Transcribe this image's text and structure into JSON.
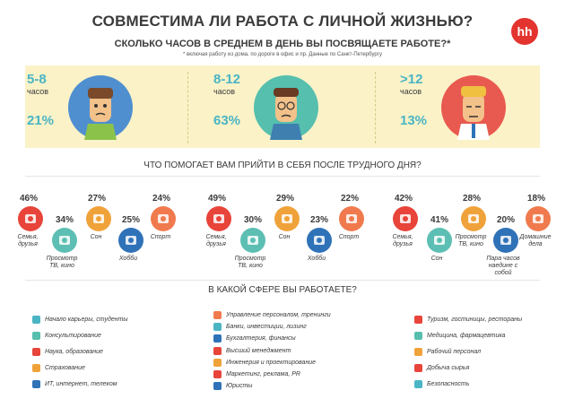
{
  "header": {
    "title": "СОВМЕСТИМА ЛИ РАБОТА С ЛИЧНОЙ ЖИЗНЬЮ?",
    "logo": "hh",
    "question": "СКОЛЬКО ЧАСОВ В СРЕДНЕМ В ДЕНЬ ВЫ ПОСВЯЩАЕТЕ РАБОТЕ?*",
    "footnote": "* включая работу из дома, по дороге в офис и пр. Данные по Санкт-Петербургу"
  },
  "hours": [
    {
      "range": "5-8",
      "unit": "часов",
      "percent": "21%",
      "face_color": "#4f8fd0"
    },
    {
      "range": "8-12",
      "unit": "часов",
      "percent": "63%",
      "face_color": "#56bfae"
    },
    {
      "range": ">12",
      "unit": "часов",
      "percent": "13%",
      "face_color": "#e85a4f"
    }
  ],
  "recovery": {
    "question": "ЧТО ПОМОГАЕТ ВАМ ПРИЙТИ В СЕБЯ ПОСЛЕ ТРУДНОГО ДНЯ?",
    "groups": [
      {
        "items": [
          {
            "pct": "46%",
            "label": "Семья,\nдрузья",
            "color": "#e8443a",
            "icon": "family-icon"
          },
          {
            "pct": "34%",
            "label": "Просмотр\nТВ, кино",
            "color": "#5dbfb4",
            "icon": "tv-icon"
          },
          {
            "pct": "27%",
            "label": "Сон",
            "color": "#f0a23a",
            "icon": "sleep-icon"
          },
          {
            "pct": "25%",
            "label": "Хобби",
            "color": "#2f72b8",
            "icon": "camera-icon"
          },
          {
            "pct": "24%",
            "label": "Спорт",
            "color": "#f07a4e",
            "icon": "dumbbell-icon"
          }
        ]
      },
      {
        "items": [
          {
            "pct": "49%",
            "label": "Семья,\nдрузья",
            "color": "#e8443a",
            "icon": "family-icon"
          },
          {
            "pct": "30%",
            "label": "Просмотр\nТВ, кино",
            "color": "#5dbfb4",
            "icon": "tv-icon"
          },
          {
            "pct": "29%",
            "label": "Сон",
            "color": "#f0a23a",
            "icon": "sleep-icon"
          },
          {
            "pct": "23%",
            "label": "Хобби",
            "color": "#2f72b8",
            "icon": "camera-icon"
          },
          {
            "pct": "22%",
            "label": "Спорт",
            "color": "#f07a4e",
            "icon": "dumbbell-icon"
          }
        ]
      },
      {
        "items": [
          {
            "pct": "42%",
            "label": "Семья,\nдрузья",
            "color": "#e8443a",
            "icon": "family-icon"
          },
          {
            "pct": "41%",
            "label": "Сон",
            "color": "#5dbfb4",
            "icon": "sleep-icon"
          },
          {
            "pct": "28%",
            "label": "Просмотр\nТВ, кино",
            "color": "#f0a23a",
            "icon": "tv-icon"
          },
          {
            "pct": "20%",
            "label": "Пара часов\nнаедине с собой",
            "color": "#2f72b8",
            "icon": "meditation-icon"
          },
          {
            "pct": "18%",
            "label": "Домашние\nдела",
            "color": "#f07a4e",
            "icon": "laptop-icon"
          }
        ]
      }
    ]
  },
  "spheres": {
    "question": "В КАКОЙ СФЕРЕ ВЫ РАБОТАЕТЕ?",
    "col1": [
      {
        "label": "Начало карьеры, студенты",
        "color": "#4ab5c4",
        "icon": "graduation-cap-icon"
      },
      {
        "label": "Консультирование",
        "color": "#56bfae",
        "icon": "consulting-icon"
      },
      {
        "label": "Наука, образование",
        "color": "#e8443a",
        "icon": "science-icon"
      },
      {
        "label": "Страхование",
        "color": "#f0a23a",
        "icon": "insurance-icon"
      },
      {
        "label": "ИТ, интернет, телеком",
        "color": "#2f72b8",
        "icon": "network-icon"
      }
    ],
    "col2": [
      {
        "label": "Управление персоналом, тренинги",
        "color": "#f07a4e",
        "icon": "hr-icon"
      },
      {
        "label": "Банки, инвестиции, лизинг",
        "color": "#4ab5c4",
        "icon": "bank-icon"
      },
      {
        "label": "Бухгалтерия, финансы",
        "color": "#2f72b8",
        "icon": "calculator-icon"
      },
      {
        "label": "Высший менеджмент",
        "color": "#e8443a",
        "icon": "manager-icon"
      },
      {
        "label": "Инженерия и проектирование",
        "color": "#f0a23a",
        "icon": "engineering-icon"
      },
      {
        "label": "Маркетинг, реклама, PR",
        "color": "#e8443a",
        "icon": "megaphone-icon"
      },
      {
        "label": "Юристы",
        "color": "#2f72b8",
        "icon": "law-icon"
      }
    ],
    "col3": [
      {
        "label": "Туризм, гостиницы, рестораны",
        "color": "#e8443a",
        "icon": "tourism-icon"
      },
      {
        "label": "Медицина, фармацевтика",
        "color": "#56bfae",
        "icon": "medicine-icon"
      },
      {
        "label": "Рабочий персонал",
        "color": "#f0a23a",
        "icon": "worker-icon"
      },
      {
        "label": "Добыча сырья",
        "color": "#e8443a",
        "icon": "mining-icon"
      },
      {
        "label": "Безопасность",
        "color": "#4ab5c4",
        "icon": "security-icon"
      }
    ]
  }
}
